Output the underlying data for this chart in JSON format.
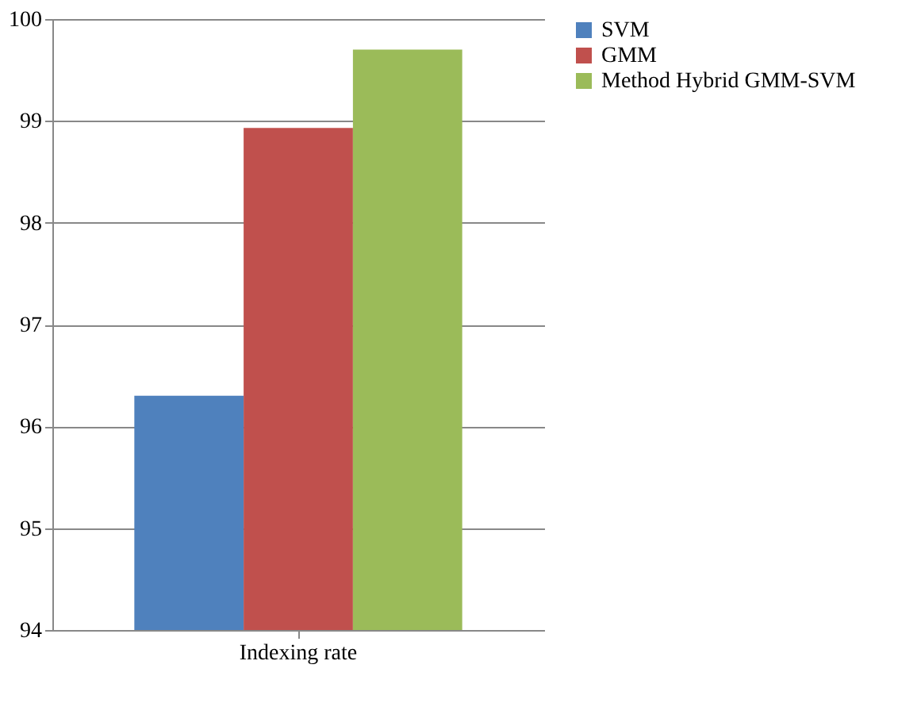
{
  "chart_data": {
    "type": "bar",
    "categories": [
      "Indexing rate"
    ],
    "series": [
      {
        "name": "SVM",
        "color": "#4f81bd",
        "values": [
          96.3
        ]
      },
      {
        "name": "GMM",
        "color": "#c0504d",
        "values": [
          98.93
        ]
      },
      {
        "name": "Method Hybrid GMM-SVM",
        "color": "#9bbb59",
        "values": [
          99.7
        ]
      }
    ],
    "ylim": [
      94,
      100
    ],
    "yticks": [
      94,
      95,
      96,
      97,
      98,
      99,
      100
    ],
    "grid": "y",
    "legend": "right"
  }
}
